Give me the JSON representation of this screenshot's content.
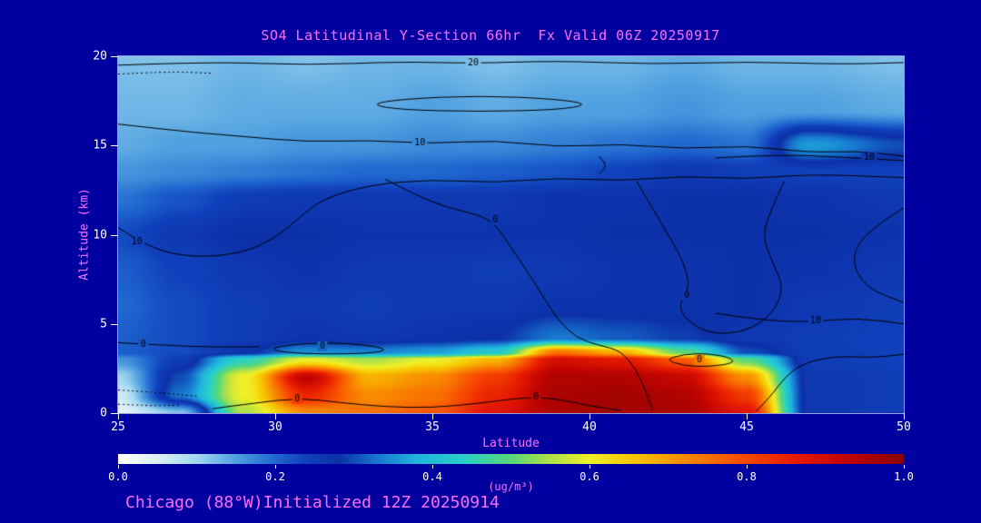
{
  "header": {
    "title": "SO4 Latitudinal Y-Section 66hr  Fx Valid 06Z 20250917"
  },
  "footer": {
    "text": "Chicago (88°W)Initialized 12Z 20250914"
  },
  "axes": {
    "y": {
      "label": "Altitude (km)",
      "ticks": [
        "20",
        "15",
        "10",
        "5",
        "0"
      ]
    },
    "x": {
      "label": "Latitude",
      "ticks": [
        "25",
        "30",
        "35",
        "40",
        "45",
        "50"
      ]
    }
  },
  "colorbar": {
    "label": "(ug/m³)",
    "ticks": [
      "0.0",
      "0.2",
      "0.4",
      "0.6",
      "0.8",
      "1.0"
    ]
  },
  "colors": {
    "background": "#0000A0",
    "title": "#FF6EFF",
    "axis_text": "#FF6EFF",
    "tick_text": "#FFFFFF",
    "frame": "#9A9ADE",
    "contour": "#000000"
  },
  "chart_data": {
    "type": "heatmap",
    "title": "SO4 Latitudinal Y-Section 66hr  Fx Valid 06Z 20250917",
    "xlabel": "Latitude",
    "ylabel": "Altitude (km)",
    "units": "ug/m3",
    "x_range": [
      25,
      50
    ],
    "y_range": [
      0,
      20
    ],
    "value_range": [
      0,
      1
    ],
    "x": [
      25,
      27,
      29,
      31,
      33,
      35,
      37,
      39,
      41,
      43,
      45,
      47,
      50
    ],
    "y": [
      0,
      1,
      2,
      3,
      3.4,
      4.2,
      6,
      8,
      10,
      12,
      13.5,
      15,
      17,
      20
    ],
    "values": [
      [
        0.04,
        0.12,
        0.55,
        0.72,
        0.75,
        0.78,
        0.88,
        0.96,
        0.97,
        0.96,
        0.88,
        0.26,
        0.25
      ],
      [
        0.06,
        0.33,
        0.6,
        0.85,
        0.72,
        0.75,
        0.85,
        0.96,
        0.97,
        0.95,
        0.82,
        0.26,
        0.25
      ],
      [
        0.1,
        0.3,
        0.6,
        0.93,
        0.68,
        0.72,
        0.82,
        0.95,
        0.95,
        0.92,
        0.72,
        0.26,
        0.25
      ],
      [
        0.16,
        0.25,
        0.45,
        0.6,
        0.55,
        0.6,
        0.68,
        0.9,
        0.87,
        0.78,
        0.5,
        0.25,
        0.24
      ],
      [
        0.21,
        0.23,
        0.27,
        0.35,
        0.34,
        0.36,
        0.42,
        0.75,
        0.68,
        0.5,
        0.3,
        0.25,
        0.24
      ],
      [
        0.21,
        0.23,
        0.25,
        0.27,
        0.26,
        0.27,
        0.28,
        0.33,
        0.31,
        0.29,
        0.26,
        0.25,
        0.24
      ],
      [
        0.2,
        0.23,
        0.25,
        0.26,
        0.25,
        0.26,
        0.26,
        0.27,
        0.27,
        0.27,
        0.28,
        0.26,
        0.25
      ],
      [
        0.21,
        0.24,
        0.26,
        0.27,
        0.26,
        0.26,
        0.25,
        0.26,
        0.27,
        0.27,
        0.28,
        0.27,
        0.26
      ],
      [
        0.23,
        0.26,
        0.28,
        0.28,
        0.27,
        0.27,
        0.27,
        0.27,
        0.28,
        0.28,
        0.28,
        0.28,
        0.27
      ],
      [
        0.19,
        0.22,
        0.25,
        0.26,
        0.26,
        0.26,
        0.26,
        0.27,
        0.27,
        0.28,
        0.28,
        0.27,
        0.26
      ],
      [
        0.16,
        0.17,
        0.18,
        0.19,
        0.2,
        0.2,
        0.21,
        0.22,
        0.24,
        0.26,
        0.25,
        0.24,
        0.24
      ],
      [
        0.14,
        0.15,
        0.15,
        0.16,
        0.16,
        0.17,
        0.17,
        0.18,
        0.19,
        0.2,
        0.19,
        0.36,
        0.3
      ],
      [
        0.13,
        0.13,
        0.14,
        0.14,
        0.14,
        0.15,
        0.14,
        0.15,
        0.15,
        0.16,
        0.15,
        0.15,
        0.14
      ],
      [
        0.12,
        0.12,
        0.13,
        0.12,
        0.13,
        0.13,
        0.12,
        0.13,
        0.13,
        0.14,
        0.13,
        0.13,
        0.12
      ]
    ],
    "colormap": [
      [
        0.0,
        "#ffffff"
      ],
      [
        0.05,
        "#dceff8"
      ],
      [
        0.1,
        "#a0d8f0"
      ],
      [
        0.15,
        "#50a0e0"
      ],
      [
        0.2,
        "#2068d0"
      ],
      [
        0.24,
        "#1040bc"
      ],
      [
        0.28,
        "#0c30a8"
      ],
      [
        0.33,
        "#1878d0"
      ],
      [
        0.38,
        "#20b4dc"
      ],
      [
        0.44,
        "#28d0c8"
      ],
      [
        0.5,
        "#58d878"
      ],
      [
        0.55,
        "#b0e048"
      ],
      [
        0.6,
        "#f0f028"
      ],
      [
        0.66,
        "#f8c400"
      ],
      [
        0.72,
        "#f88c00"
      ],
      [
        0.79,
        "#f85000"
      ],
      [
        0.86,
        "#e81c00"
      ],
      [
        0.93,
        "#c00400"
      ],
      [
        1.0,
        "#8b0000"
      ]
    ],
    "contours": [
      {
        "points": [
          [
            25,
            19.5
          ],
          [
            28,
            19.7
          ],
          [
            31,
            19.5
          ],
          [
            34,
            19.7
          ],
          [
            36.3,
            19.6
          ],
          [
            39,
            19.75
          ],
          [
            42,
            19.55
          ],
          [
            45,
            19.7
          ],
          [
            48,
            19.55
          ],
          [
            50,
            19.65
          ]
        ]
      },
      {
        "points": [
          [
            33,
            17.3
          ],
          [
            34,
            17.6
          ],
          [
            36.5,
            17.8
          ],
          [
            39,
            17.6
          ],
          [
            40,
            17.3
          ],
          [
            39,
            17.0
          ],
          [
            36.5,
            16.9
          ],
          [
            34,
            17.0
          ]
        ],
        "closed": true
      },
      {
        "points": [
          [
            25,
            16.2
          ],
          [
            27,
            15.8
          ],
          [
            29,
            15.5
          ],
          [
            31,
            15.2
          ],
          [
            33,
            15.3
          ],
          [
            35,
            15.1
          ],
          [
            37,
            15.3
          ],
          [
            39,
            14.9
          ],
          [
            41,
            15.1
          ],
          [
            43,
            14.8
          ],
          [
            45,
            15.0
          ],
          [
            47,
            14.6
          ],
          [
            48.5,
            14.7
          ],
          [
            50,
            14.4
          ]
        ]
      },
      {
        "points": [
          [
            44,
            14.3
          ],
          [
            46,
            14.5
          ],
          [
            48,
            14.35
          ],
          [
            50,
            14.15
          ]
        ]
      },
      {
        "points": [
          [
            25,
            10.4
          ],
          [
            26,
            9.2
          ],
          [
            27.5,
            8.7
          ],
          [
            29,
            9.0
          ],
          [
            30,
            9.8
          ],
          [
            30.8,
            11.0
          ],
          [
            31.5,
            12.0
          ],
          [
            33,
            12.8
          ],
          [
            35,
            13.1
          ],
          [
            37,
            12.9
          ],
          [
            39,
            13.2
          ],
          [
            41,
            13.0
          ],
          [
            43,
            13.3
          ],
          [
            45,
            13.1
          ],
          [
            47,
            13.4
          ],
          [
            50,
            13.2
          ]
        ]
      },
      {
        "points": [
          [
            33.5,
            13.1
          ],
          [
            34.5,
            12.2
          ],
          [
            35.5,
            11.5
          ],
          [
            36.5,
            11.1
          ],
          [
            37,
            10.6
          ],
          [
            37.5,
            9.3
          ],
          [
            38,
            8.0
          ],
          [
            38.5,
            6.6
          ],
          [
            39,
            5.2
          ],
          [
            39.6,
            4.2
          ],
          [
            40.3,
            3.8
          ],
          [
            41,
            3.5
          ],
          [
            41.5,
            2.4
          ],
          [
            41.8,
            1.2
          ],
          [
            42,
            0.2
          ]
        ]
      },
      {
        "points": [
          [
            41.5,
            13.0
          ],
          [
            42,
            11.5
          ],
          [
            42.5,
            10.0
          ],
          [
            43,
            8.5
          ],
          [
            43.2,
            7.0
          ],
          [
            42.8,
            6.0
          ],
          [
            43.2,
            5.0
          ],
          [
            44,
            4.4
          ],
          [
            45,
            4.6
          ],
          [
            45.8,
            5.5
          ],
          [
            46.2,
            7.0
          ],
          [
            45.8,
            8.5
          ],
          [
            45.5,
            10.0
          ],
          [
            45.8,
            11.5
          ],
          [
            46.2,
            13.0
          ]
        ]
      },
      {
        "points": [
          [
            44,
            5.6
          ],
          [
            45.5,
            5.2
          ],
          [
            47,
            5.1
          ],
          [
            48.5,
            5.35
          ],
          [
            50,
            5.0
          ]
        ]
      },
      {
        "points": [
          [
            50,
            11.5
          ],
          [
            48.8,
            10.2
          ],
          [
            48.3,
            8.6
          ],
          [
            48.8,
            7.0
          ],
          [
            50,
            6.2
          ]
        ]
      },
      {
        "points": [
          [
            40.3,
            14.4
          ],
          [
            40.6,
            13.9
          ],
          [
            40.3,
            13.4
          ]
        ]
      },
      {
        "points": [
          [
            25,
            3.95
          ],
          [
            26.5,
            3.8
          ],
          [
            28,
            3.7
          ],
          [
            29.5,
            3.72
          ]
        ]
      },
      {
        "points": [
          [
            29.8,
            3.6
          ],
          [
            30.5,
            3.85
          ],
          [
            31.8,
            3.95
          ],
          [
            33,
            3.8
          ],
          [
            33.6,
            3.55
          ],
          [
            33,
            3.35
          ],
          [
            31.5,
            3.3
          ],
          [
            30.3,
            3.4
          ]
        ],
        "closed": true
      },
      {
        "points": [
          [
            28,
            0.25
          ],
          [
            29.5,
            0.6
          ],
          [
            30.8,
            0.85
          ],
          [
            32,
            0.6
          ],
          [
            33.5,
            0.35
          ],
          [
            35,
            0.3
          ],
          [
            36.5,
            0.55
          ],
          [
            38,
            0.9
          ],
          [
            39,
            0.8
          ],
          [
            40,
            0.4
          ],
          [
            41,
            0.15
          ]
        ]
      },
      {
        "points": [
          [
            42.4,
            3.0
          ],
          [
            43,
            3.3
          ],
          [
            43.8,
            3.35
          ],
          [
            44.5,
            3.1
          ],
          [
            44.6,
            2.8
          ],
          [
            43.8,
            2.6
          ],
          [
            43,
            2.65
          ]
        ],
        "closed": true
      },
      {
        "points": [
          [
            45.3,
            0.1
          ],
          [
            45.8,
            1.0
          ],
          [
            46.2,
            2.0
          ],
          [
            46.8,
            2.8
          ],
          [
            47.8,
            3.2
          ],
          [
            49,
            3.1
          ],
          [
            50,
            3.3
          ]
        ]
      },
      {
        "points": [
          [
            25,
            19.0
          ],
          [
            26.5,
            19.15
          ],
          [
            28,
            19.05
          ]
        ],
        "dashed": true
      },
      {
        "points": [
          [
            25,
            1.3
          ],
          [
            26.3,
            1.15
          ],
          [
            27.5,
            0.95
          ]
        ],
        "dashed": true
      },
      {
        "points": [
          [
            25,
            0.5
          ],
          [
            26,
            0.4
          ],
          [
            27,
            0.45
          ]
        ],
        "dashed": true
      }
    ],
    "contour_labels": [
      {
        "text": "20",
        "lat": 36.3,
        "alt": 19.6
      },
      {
        "text": "10",
        "lat": 34.6,
        "alt": 15.15
      },
      {
        "text": "10",
        "lat": 48.9,
        "alt": 14.35
      },
      {
        "text": "10",
        "lat": 25.6,
        "alt": 9.6
      },
      {
        "text": "0",
        "lat": 37.0,
        "alt": 10.8
      },
      {
        "text": "0",
        "lat": 43.1,
        "alt": 6.6
      },
      {
        "text": "10",
        "lat": 47.2,
        "alt": 5.15
      },
      {
        "text": "0",
        "lat": 25.8,
        "alt": 3.85
      },
      {
        "text": "0",
        "lat": 31.5,
        "alt": 3.75
      },
      {
        "text": "0",
        "lat": 30.7,
        "alt": 0.8
      },
      {
        "text": "0",
        "lat": 38.3,
        "alt": 0.9
      },
      {
        "text": "0",
        "lat": 43.5,
        "alt": 3.0
      }
    ],
    "colorbar_ticks": [
      0.0,
      0.2,
      0.4,
      0.6,
      0.8,
      1.0
    ],
    "legend_position": "bottom",
    "grid": false
  }
}
